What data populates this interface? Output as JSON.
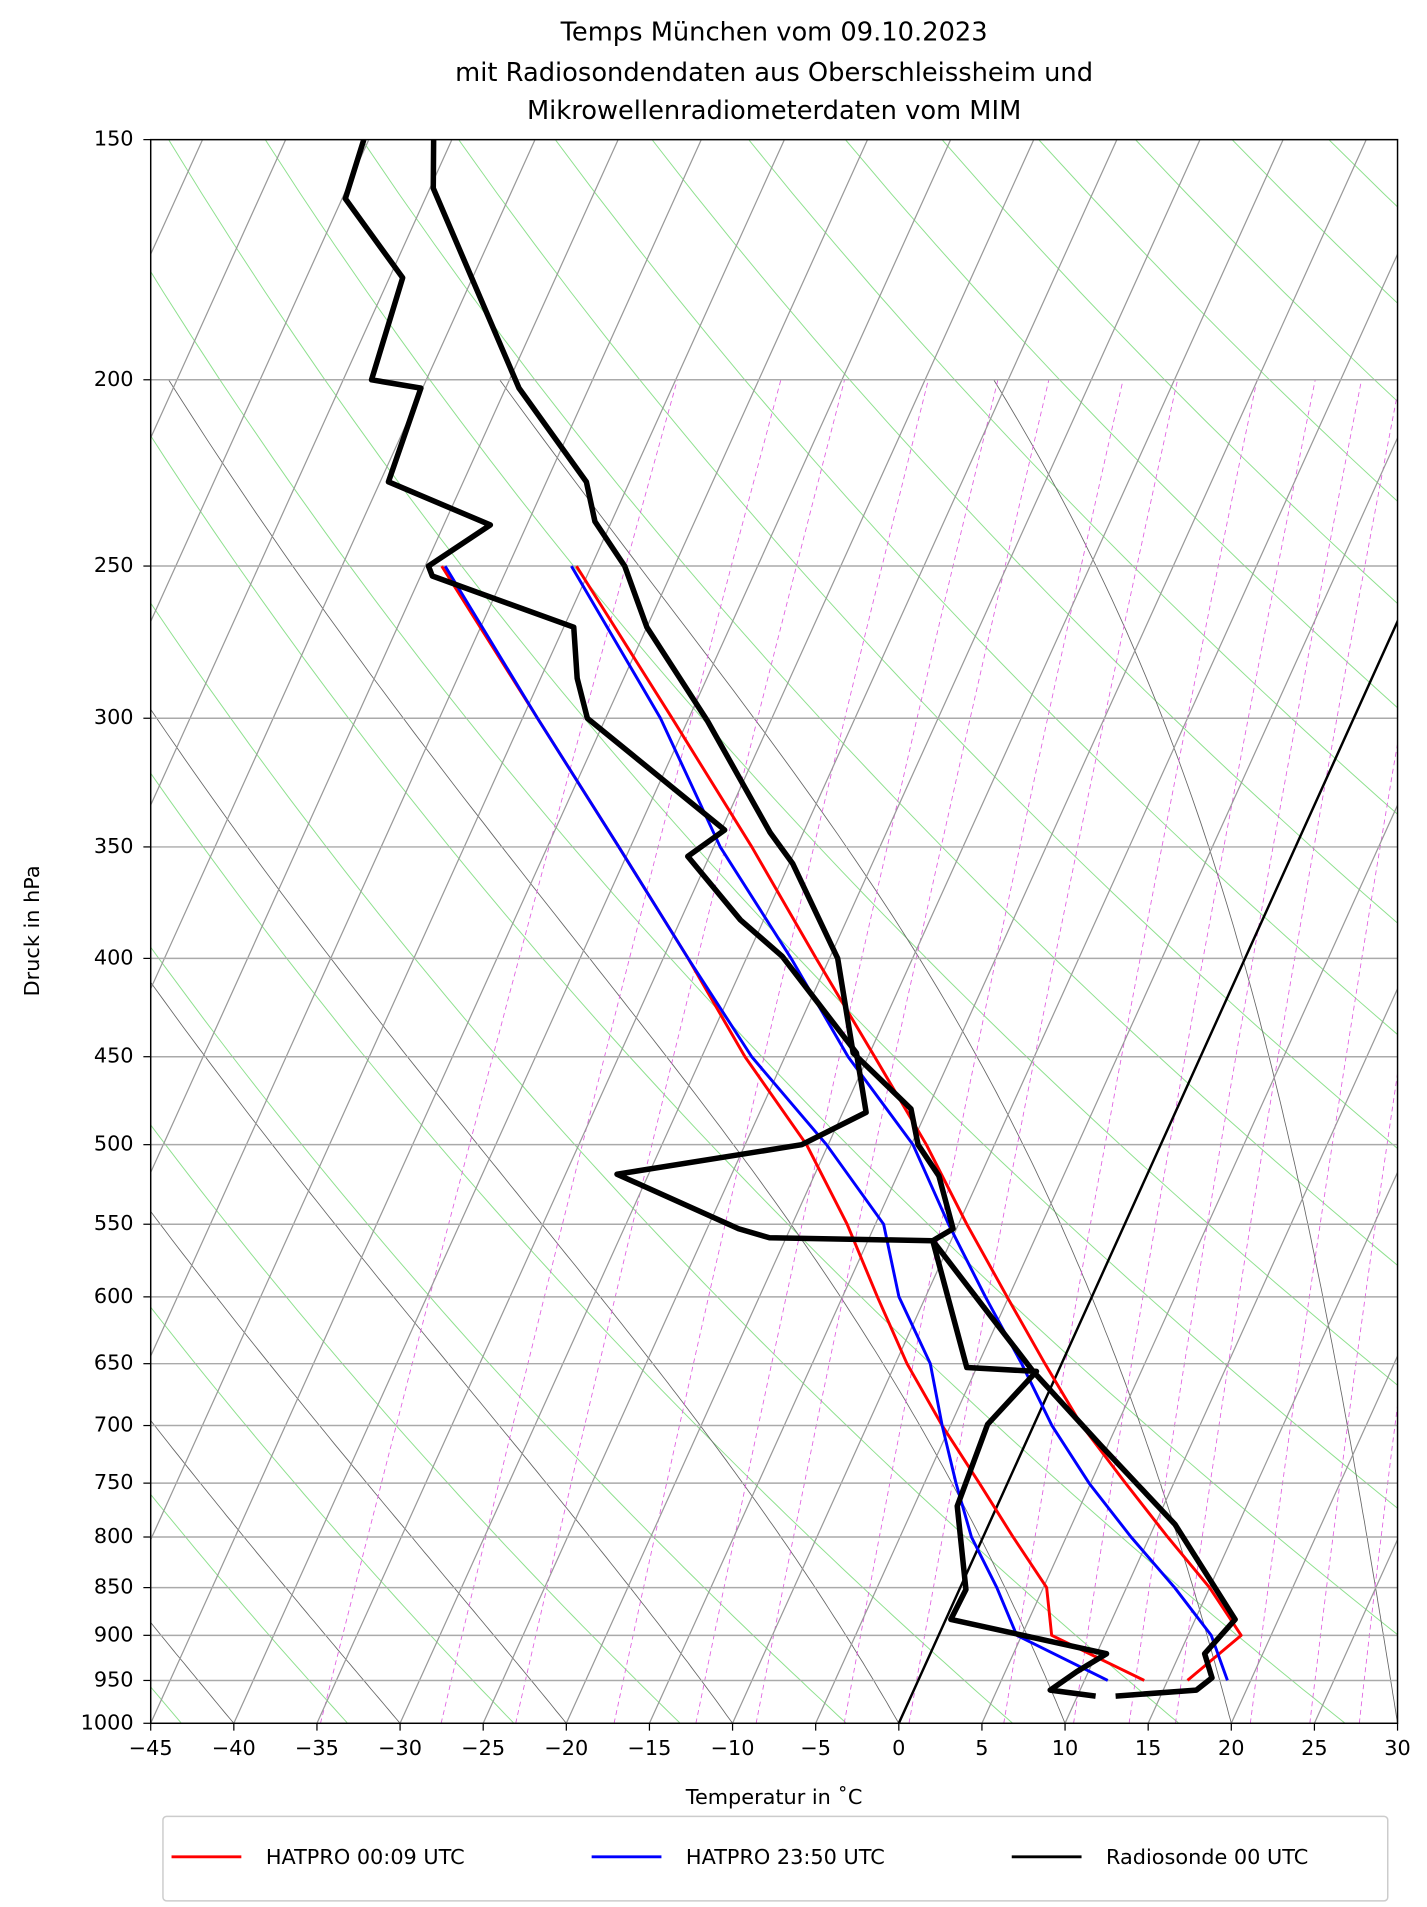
{
  "chart_data": {
    "type": "skewt",
    "title": [
      "Temps München vom 09.10.2023",
      "mit Radiosondendaten aus Oberschleissheim und",
      "Mikrowellenradiometerdaten vom MIM"
    ],
    "x_label": "Temperatur in $^\\circ$C",
    "x_label_text": "Temperatur in ˚C",
    "y_label": "Druck in hPa",
    "yscale": "log",
    "xlim": [
      -45,
      30
    ],
    "ylim": [
      1000,
      150
    ],
    "xticks": [
      {
        "value": -45,
        "label": "−45"
      },
      {
        "value": -40,
        "label": "−40"
      },
      {
        "value": -35,
        "label": "−35"
      },
      {
        "value": -30,
        "label": "−30"
      },
      {
        "value": -25,
        "label": "−25"
      },
      {
        "value": -20,
        "label": "−20"
      },
      {
        "value": -15,
        "label": "−15"
      },
      {
        "value": -10,
        "label": "−10"
      },
      {
        "value": -5,
        "label": "−5"
      },
      0,
      5,
      10,
      15,
      20,
      25,
      30
    ],
    "yticks": [
      150,
      200,
      250,
      300,
      350,
      400,
      450,
      500,
      550,
      600,
      650,
      700,
      750,
      800,
      850,
      900,
      950,
      1000
    ],
    "grid": true,
    "legend": "bottom",
    "series": [
      {
        "name": "HATPRO 00:09 UTC",
        "color": "#ff0000",
        "lines": [
          {
            "pressure": [
              250,
              300,
              350,
              400,
              450,
              500,
              550,
              600,
              650,
              700,
              750,
              800,
              850,
              900,
              950
            ],
            "values": [
              -50.9,
              -41.0,
              -32.7,
              -25.8,
              -19.6,
              -14.1,
              -9.5,
              -5.1,
              -1.0,
              2.9,
              7.1,
              11.1,
              15.0,
              18.2,
              16.2
            ]
          },
          {
            "pressure": [
              250,
              300,
              350,
              400,
              450,
              500,
              550,
              600,
              650,
              700,
              750,
              800,
              850,
              900,
              950
            ],
            "values": [
              -59.0,
              -49.1,
              -40.7,
              -33.5,
              -27.4,
              -21.3,
              -16.7,
              -12.9,
              -9.3,
              -5.5,
              -1.7,
              1.8,
              5.2,
              6.8,
              13.6
            ]
          }
        ]
      },
      {
        "name": "HATPRO 23:50 UTC",
        "color": "#0000ff",
        "lines": [
          {
            "pressure": [
              250,
              300,
              350,
              400,
              450,
              500,
              550,
              600,
              650,
              700,
              750,
              800,
              850,
              900,
              950
            ],
            "values": [
              -51.2,
              -41.7,
              -34.6,
              -27.3,
              -21.2,
              -14.9,
              -10.6,
              -6.4,
              -2.4,
              1.1,
              4.9,
              8.9,
              12.9,
              16.4,
              18.6
            ]
          },
          {
            "pressure": [
              250,
              300,
              350,
              400,
              450,
              500,
              550,
              600,
              650,
              700,
              750,
              800,
              850,
              900,
              950
            ],
            "values": [
              -58.8,
              -49.1,
              -40.7,
              -33.5,
              -27.0,
              -20.1,
              -14.5,
              -11.6,
              -7.9,
              -5.5,
              -3.1,
              -0.7,
              2.2,
              4.7,
              11.4
            ]
          }
        ]
      },
      {
        "name": "Radiosonde 00 UTC",
        "color": "#000000",
        "lines": [
          {
            "pressure": [
              150,
              159,
              202,
              226,
              237,
              250,
              269,
              301,
              344,
              357,
              400,
              448,
              479,
              500,
              519,
              553,
              561,
              656,
              717,
              788,
              883,
              920,
              947,
              961,
              968
            ],
            "values": [
              -71.1,
              -69.8,
              -59.2,
              -52.6,
              -51.0,
              -48.0,
              -45.0,
              -38.8,
              -32.0,
              -29.8,
              -24.5,
              -21.0,
              -16.0,
              -14.6,
              -12.5,
              -10.2,
              -11.1,
              -1.5,
              4.6,
              11.2,
              17.4,
              16.5,
              17.6,
              17.0,
              12.3
            ]
          },
          {
            "pressure": [
              150,
              161,
              177,
              200,
              202,
              226,
              238,
              250,
              253,
              269,
              286,
              300,
              343,
              354,
              382,
              399,
              448,
              481,
              500,
              518,
              553,
              559,
              561,
              653,
              656,
              699,
              771,
              852,
              883,
              920,
              940,
              961,
              968
            ],
            "values": [
              -75.3,
              -74.8,
              -69.2,
              -68.3,
              -65.1,
              -64.5,
              -57.2,
              -59.8,
              -59.3,
              -49.4,
              -47.8,
              -46.1,
              -34.8,
              -36.3,
              -31.4,
              -27.9,
              -20.8,
              -18.6,
              -21.6,
              -31.9,
              -23.1,
              -21.0,
              -11.1,
              -5.6,
              -1.3,
              -2.8,
              -2.4,
              0.4,
              0.3,
              10.6,
              9.3,
              8.2,
              11.1
            ]
          }
        ]
      }
    ]
  }
}
